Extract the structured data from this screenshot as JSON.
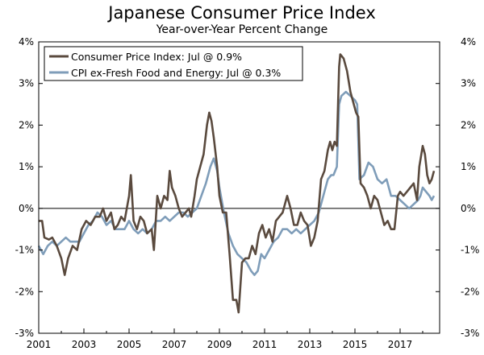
{
  "chart_data": {
    "type": "line",
    "title": "Japanese Consumer Price Index",
    "subtitle": "Year-over-Year Percent Change",
    "xlabel": "",
    "ylabel": "",
    "x_ticks": [
      "2001",
      "2003",
      "2005",
      "2007",
      "2009",
      "2011",
      "2013",
      "2015",
      "2017"
    ],
    "x_tick_years": [
      2001,
      2003,
      2005,
      2007,
      2009,
      2011,
      2013,
      2015,
      2017
    ],
    "xlim": [
      2001,
      2018.75
    ],
    "ylim": [
      -3,
      4
    ],
    "y_ticks": [
      "-3%",
      "-2%",
      "-1%",
      "0%",
      "1%",
      "2%",
      "3%",
      "4%"
    ],
    "y_tick_values": [
      -3,
      -2,
      -1,
      0,
      1,
      2,
      3,
      4
    ],
    "legend_position": "top-left",
    "series": [
      {
        "name": "Consumer Price Index: Jul @ 0.9%",
        "color": "#5a4a3e",
        "points": [
          [
            2001.0,
            -0.3
          ],
          [
            2001.15,
            -0.3
          ],
          [
            2001.25,
            -0.7
          ],
          [
            2001.45,
            -0.75
          ],
          [
            2001.6,
            -0.7
          ],
          [
            2001.8,
            -0.9
          ],
          [
            2002.0,
            -1.2
          ],
          [
            2002.15,
            -1.6
          ],
          [
            2002.3,
            -1.2
          ],
          [
            2002.5,
            -0.9
          ],
          [
            2002.7,
            -1.0
          ],
          [
            2002.9,
            -0.5
          ],
          [
            2003.1,
            -0.3
          ],
          [
            2003.3,
            -0.4
          ],
          [
            2003.5,
            -0.2
          ],
          [
            2003.7,
            -0.2
          ],
          [
            2003.85,
            0.0
          ],
          [
            2004.0,
            -0.3
          ],
          [
            2004.2,
            -0.1
          ],
          [
            2004.35,
            -0.5
          ],
          [
            2004.5,
            -0.4
          ],
          [
            2004.65,
            -0.2
          ],
          [
            2004.8,
            -0.3
          ],
          [
            2005.0,
            0.3
          ],
          [
            2005.08,
            0.8
          ],
          [
            2005.2,
            -0.3
          ],
          [
            2005.35,
            -0.5
          ],
          [
            2005.5,
            -0.2
          ],
          [
            2005.65,
            -0.3
          ],
          [
            2005.8,
            -0.6
          ],
          [
            2006.0,
            -0.5
          ],
          [
            2006.1,
            -1.0
          ],
          [
            2006.25,
            0.3
          ],
          [
            2006.4,
            0.0
          ],
          [
            2006.55,
            0.3
          ],
          [
            2006.7,
            0.2
          ],
          [
            2006.8,
            0.9
          ],
          [
            2006.9,
            0.5
          ],
          [
            2007.05,
            0.3
          ],
          [
            2007.2,
            0.0
          ],
          [
            2007.35,
            -0.2
          ],
          [
            2007.5,
            -0.1
          ],
          [
            2007.65,
            0.0
          ],
          [
            2007.75,
            -0.2
          ],
          [
            2007.9,
            0.3
          ],
          [
            2008.0,
            0.7
          ],
          [
            2008.15,
            1.0
          ],
          [
            2008.3,
            1.3
          ],
          [
            2008.45,
            2.0
          ],
          [
            2008.55,
            2.3
          ],
          [
            2008.65,
            2.1
          ],
          [
            2008.75,
            1.7
          ],
          [
            2008.9,
            1.0
          ],
          [
            2009.0,
            0.3
          ],
          [
            2009.15,
            -0.1
          ],
          [
            2009.3,
            -0.1
          ],
          [
            2009.45,
            -1.1
          ],
          [
            2009.6,
            -2.2
          ],
          [
            2009.75,
            -2.2
          ],
          [
            2009.85,
            -2.5
          ],
          [
            2010.0,
            -1.3
          ],
          [
            2010.15,
            -1.2
          ],
          [
            2010.3,
            -1.2
          ],
          [
            2010.45,
            -0.9
          ],
          [
            2010.6,
            -1.1
          ],
          [
            2010.75,
            -0.6
          ],
          [
            2010.9,
            -0.4
          ],
          [
            2011.05,
            -0.7
          ],
          [
            2011.2,
            -0.5
          ],
          [
            2011.35,
            -0.8
          ],
          [
            2011.5,
            -0.3
          ],
          [
            2011.65,
            -0.2
          ],
          [
            2011.8,
            -0.1
          ],
          [
            2012.0,
            0.3
          ],
          [
            2012.15,
            0.0
          ],
          [
            2012.3,
            -0.4
          ],
          [
            2012.45,
            -0.4
          ],
          [
            2012.6,
            -0.1
          ],
          [
            2012.75,
            -0.3
          ],
          [
            2012.9,
            -0.4
          ],
          [
            2013.05,
            -0.9
          ],
          [
            2013.2,
            -0.7
          ],
          [
            2013.35,
            -0.3
          ],
          [
            2013.5,
            0.7
          ],
          [
            2013.65,
            0.9
          ],
          [
            2013.8,
            1.4
          ],
          [
            2013.9,
            1.6
          ],
          [
            2014.0,
            1.4
          ],
          [
            2014.1,
            1.6
          ],
          [
            2014.2,
            1.5
          ],
          [
            2014.3,
            3.4
          ],
          [
            2014.35,
            3.7
          ],
          [
            2014.5,
            3.6
          ],
          [
            2014.65,
            3.3
          ],
          [
            2014.8,
            2.8
          ],
          [
            2014.95,
            2.5
          ],
          [
            2015.05,
            2.3
          ],
          [
            2015.15,
            2.2
          ],
          [
            2015.25,
            0.6
          ],
          [
            2015.4,
            0.5
          ],
          [
            2015.55,
            0.3
          ],
          [
            2015.7,
            0.0
          ],
          [
            2015.85,
            0.3
          ],
          [
            2016.0,
            0.2
          ],
          [
            2016.15,
            -0.1
          ],
          [
            2016.3,
            -0.4
          ],
          [
            2016.45,
            -0.3
          ],
          [
            2016.6,
            -0.5
          ],
          [
            2016.75,
            -0.5
          ],
          [
            2016.9,
            0.3
          ],
          [
            2017.0,
            0.4
          ],
          [
            2017.15,
            0.3
          ],
          [
            2017.3,
            0.4
          ],
          [
            2017.45,
            0.5
          ],
          [
            2017.6,
            0.6
          ],
          [
            2017.75,
            0.2
          ],
          [
            2017.85,
            1.0
          ],
          [
            2018.0,
            1.5
          ],
          [
            2018.1,
            1.3
          ],
          [
            2018.2,
            0.8
          ],
          [
            2018.3,
            0.6
          ],
          [
            2018.4,
            0.7
          ],
          [
            2018.5,
            0.9
          ]
        ]
      },
      {
        "name": "CPI ex-Fresh Food and Energy: Jul @ 0.3%",
        "color": "#7f9db9",
        "points": [
          [
            2001.0,
            -0.9
          ],
          [
            2001.2,
            -1.1
          ],
          [
            2001.4,
            -0.9
          ],
          [
            2001.6,
            -0.8
          ],
          [
            2001.8,
            -0.9
          ],
          [
            2002.0,
            -0.8
          ],
          [
            2002.2,
            -0.7
          ],
          [
            2002.4,
            -0.8
          ],
          [
            2002.6,
            -0.8
          ],
          [
            2002.8,
            -0.8
          ],
          [
            2003.0,
            -0.6
          ],
          [
            2003.2,
            -0.4
          ],
          [
            2003.4,
            -0.3
          ],
          [
            2003.6,
            -0.1
          ],
          [
            2003.8,
            -0.2
          ],
          [
            2004.0,
            -0.4
          ],
          [
            2004.2,
            -0.3
          ],
          [
            2004.4,
            -0.5
          ],
          [
            2004.6,
            -0.5
          ],
          [
            2004.8,
            -0.5
          ],
          [
            2005.0,
            -0.3
          ],
          [
            2005.2,
            -0.5
          ],
          [
            2005.4,
            -0.6
          ],
          [
            2005.6,
            -0.5
          ],
          [
            2005.8,
            -0.6
          ],
          [
            2006.0,
            -0.5
          ],
          [
            2006.2,
            -0.3
          ],
          [
            2006.4,
            -0.3
          ],
          [
            2006.6,
            -0.2
          ],
          [
            2006.8,
            -0.3
          ],
          [
            2007.0,
            -0.2
          ],
          [
            2007.2,
            -0.1
          ],
          [
            2007.4,
            -0.1
          ],
          [
            2007.6,
            -0.2
          ],
          [
            2007.8,
            -0.1
          ],
          [
            2008.0,
            0.0
          ],
          [
            2008.2,
            0.3
          ],
          [
            2008.4,
            0.6
          ],
          [
            2008.6,
            1.0
          ],
          [
            2008.75,
            1.2
          ],
          [
            2008.9,
            0.9
          ],
          [
            2009.0,
            0.5
          ],
          [
            2009.2,
            -0.1
          ],
          [
            2009.4,
            -0.6
          ],
          [
            2009.6,
            -0.9
          ],
          [
            2009.8,
            -1.1
          ],
          [
            2010.0,
            -1.2
          ],
          [
            2010.2,
            -1.3
          ],
          [
            2010.4,
            -1.5
          ],
          [
            2010.55,
            -1.6
          ],
          [
            2010.7,
            -1.5
          ],
          [
            2010.85,
            -1.1
          ],
          [
            2011.0,
            -1.2
          ],
          [
            2011.2,
            -1.0
          ],
          [
            2011.4,
            -0.8
          ],
          [
            2011.6,
            -0.7
          ],
          [
            2011.8,
            -0.5
          ],
          [
            2012.0,
            -0.5
          ],
          [
            2012.2,
            -0.6
          ],
          [
            2012.4,
            -0.5
          ],
          [
            2012.6,
            -0.6
          ],
          [
            2012.8,
            -0.5
          ],
          [
            2013.0,
            -0.4
          ],
          [
            2013.2,
            -0.3
          ],
          [
            2013.4,
            -0.1
          ],
          [
            2013.6,
            0.3
          ],
          [
            2013.8,
            0.7
          ],
          [
            2013.95,
            0.8
          ],
          [
            2014.05,
            0.8
          ],
          [
            2014.2,
            1.0
          ],
          [
            2014.3,
            2.5
          ],
          [
            2014.4,
            2.7
          ],
          [
            2014.6,
            2.8
          ],
          [
            2014.8,
            2.7
          ],
          [
            2015.0,
            2.6
          ],
          [
            2015.1,
            2.5
          ],
          [
            2015.2,
            0.7
          ],
          [
            2015.4,
            0.8
          ],
          [
            2015.6,
            1.1
          ],
          [
            2015.8,
            1.0
          ],
          [
            2016.0,
            0.7
          ],
          [
            2016.2,
            0.6
          ],
          [
            2016.4,
            0.7
          ],
          [
            2016.6,
            0.3
          ],
          [
            2016.8,
            0.3
          ],
          [
            2017.0,
            0.2
          ],
          [
            2017.2,
            0.1
          ],
          [
            2017.4,
            0.0
          ],
          [
            2017.6,
            0.1
          ],
          [
            2017.8,
            0.2
          ],
          [
            2017.9,
            0.3
          ],
          [
            2018.0,
            0.5
          ],
          [
            2018.15,
            0.4
          ],
          [
            2018.3,
            0.3
          ],
          [
            2018.4,
            0.2
          ],
          [
            2018.5,
            0.3
          ]
        ]
      }
    ]
  }
}
